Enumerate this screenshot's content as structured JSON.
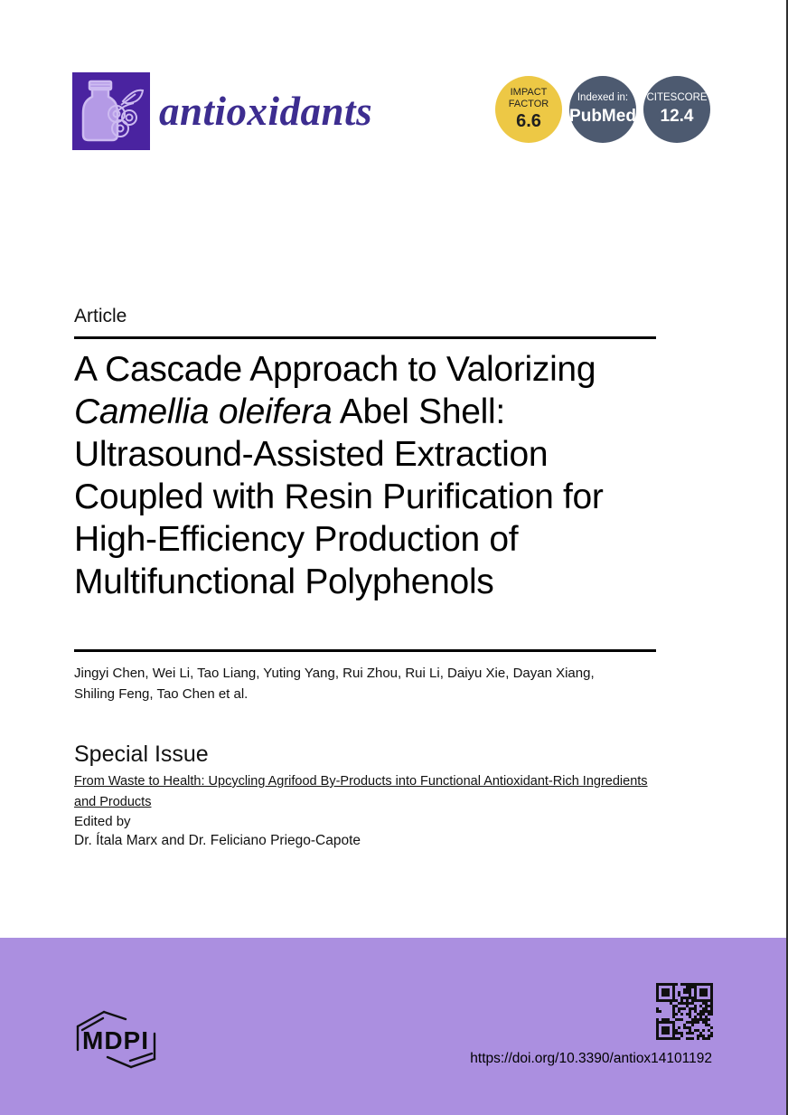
{
  "journal": {
    "name": "antioxidants",
    "logo_icon": "bottle-and-berries"
  },
  "badges": {
    "impact_factor": {
      "line1": "IMPACT",
      "line2": "FACTOR",
      "value": "6.6"
    },
    "indexed": {
      "line1": "Indexed in:",
      "value": "PubMed"
    },
    "citescore": {
      "line1": "CITESCORE",
      "value": "12.4"
    }
  },
  "article": {
    "type_label": "Article",
    "title": {
      "l1": "A Cascade Approach to Valorizing",
      "l2_italic": "Camellia oleifera",
      "l2_rest": " Abel Shell:",
      "l3": "Ultrasound-Assisted Extraction",
      "l4": "Coupled with Resin Purification for",
      "l5": "High-Efficiency Production of",
      "l6": "Multifunctional Polyphenols"
    },
    "authors_line1": "Jingyi Chen, Wei Li, Tao Liang, Yuting Yang, Rui Zhou, Rui Li, Daiyu Xie, Dayan Xiang,",
    "authors_line2": "Shiling Feng, Tao Chen et al."
  },
  "special_issue": {
    "heading": "Special Issue",
    "link_text": "From Waste to Health: Upcycling Agrifood By-Products into Functional Antioxidant-Rich Ingredients and Products",
    "edited_by_label": "Edited by",
    "editors": "Dr. Ítala Marx and Dr. Feliciano Priego-Capote"
  },
  "footer": {
    "mdpi_label": "MDPI",
    "doi": "https://doi.org/10.3390/antiox14101192"
  },
  "colors": {
    "band": "#ab8fe0",
    "logo_bg": "#4a23a0",
    "journal_name": "#3d2d90",
    "impact_badge_bg": "#edc845",
    "dark_badge_bg": "#4d5a70"
  }
}
